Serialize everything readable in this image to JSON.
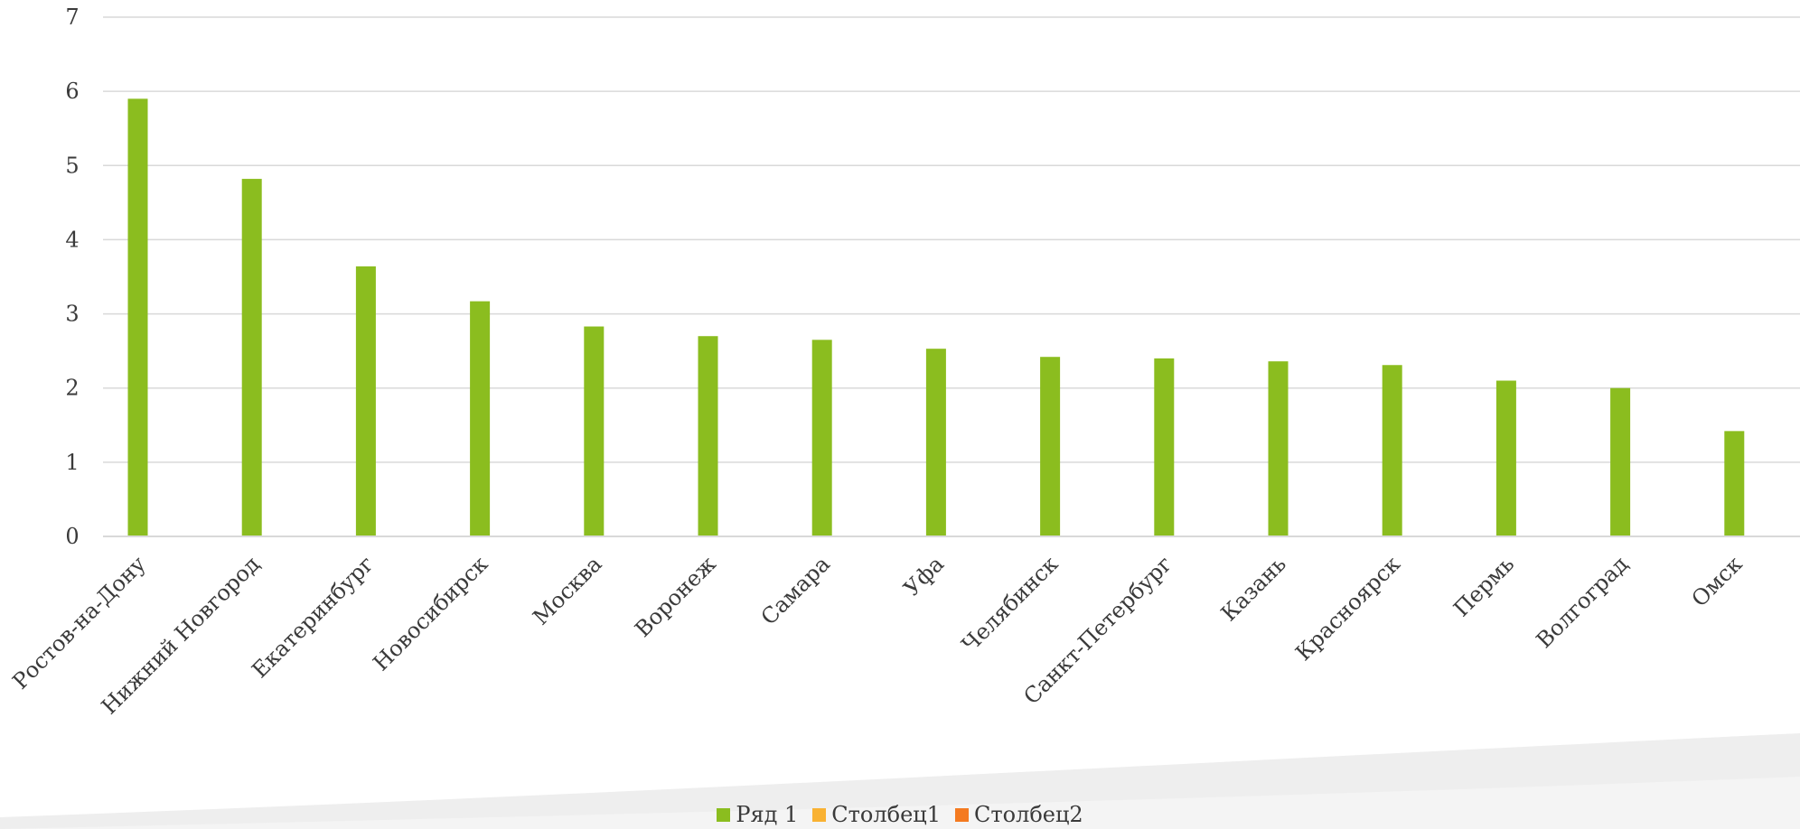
{
  "chart_data": {
    "type": "bar",
    "title": "",
    "xlabel": "",
    "ylabel": "",
    "ylim": [
      0,
      7
    ],
    "yticks": [
      "0",
      "1",
      "2",
      "3",
      "4",
      "5",
      "6",
      "7"
    ],
    "grid": true,
    "legend_position": "bottom",
    "categories": [
      "Ростов-на-Дону",
      "Нижний Новгород",
      "Екатеринбург",
      "Новосибирск",
      "Москва",
      "Воронеж",
      "Самара",
      "Уфа",
      "Челябинск",
      "Санкт-Петербург",
      "Казань",
      "Красноярск",
      "Пермь",
      "Волгоград",
      "Омск"
    ],
    "series": [
      {
        "name": "Ряд 1",
        "color": "#8bbd1f",
        "values": [
          5.9,
          4.82,
          3.64,
          3.17,
          2.83,
          2.7,
          2.65,
          2.53,
          2.42,
          2.4,
          2.36,
          2.31,
          2.1,
          2.0,
          1.42
        ]
      }
    ],
    "legend": [
      {
        "name": "Ряд 1",
        "color": "#8bbd1f"
      },
      {
        "name": "Столбец1",
        "color": "#f9b233"
      },
      {
        "name": "Столбец2",
        "color": "#f47a20"
      }
    ]
  }
}
